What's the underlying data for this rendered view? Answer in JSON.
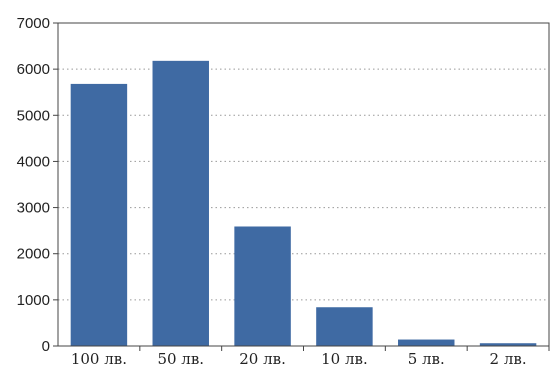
{
  "chart_data": {
    "type": "bar",
    "categories": [
      "100 лв.",
      "50 лв.",
      "20 лв.",
      "10 лв.",
      "5 лв.",
      "2 лв."
    ],
    "values": [
      5680,
      6180,
      2590,
      840,
      140,
      60
    ],
    "title": "",
    "xlabel": "",
    "ylabel": "",
    "ylim": [
      0,
      7000
    ],
    "yticks": [
      0,
      1000,
      2000,
      3000,
      4000,
      5000,
      6000,
      7000
    ],
    "grid": "horizontal-dotted",
    "legend": "none",
    "colors": {
      "bar": "#3f6aa3",
      "axis": "#444444",
      "grid": "#999999"
    }
  }
}
